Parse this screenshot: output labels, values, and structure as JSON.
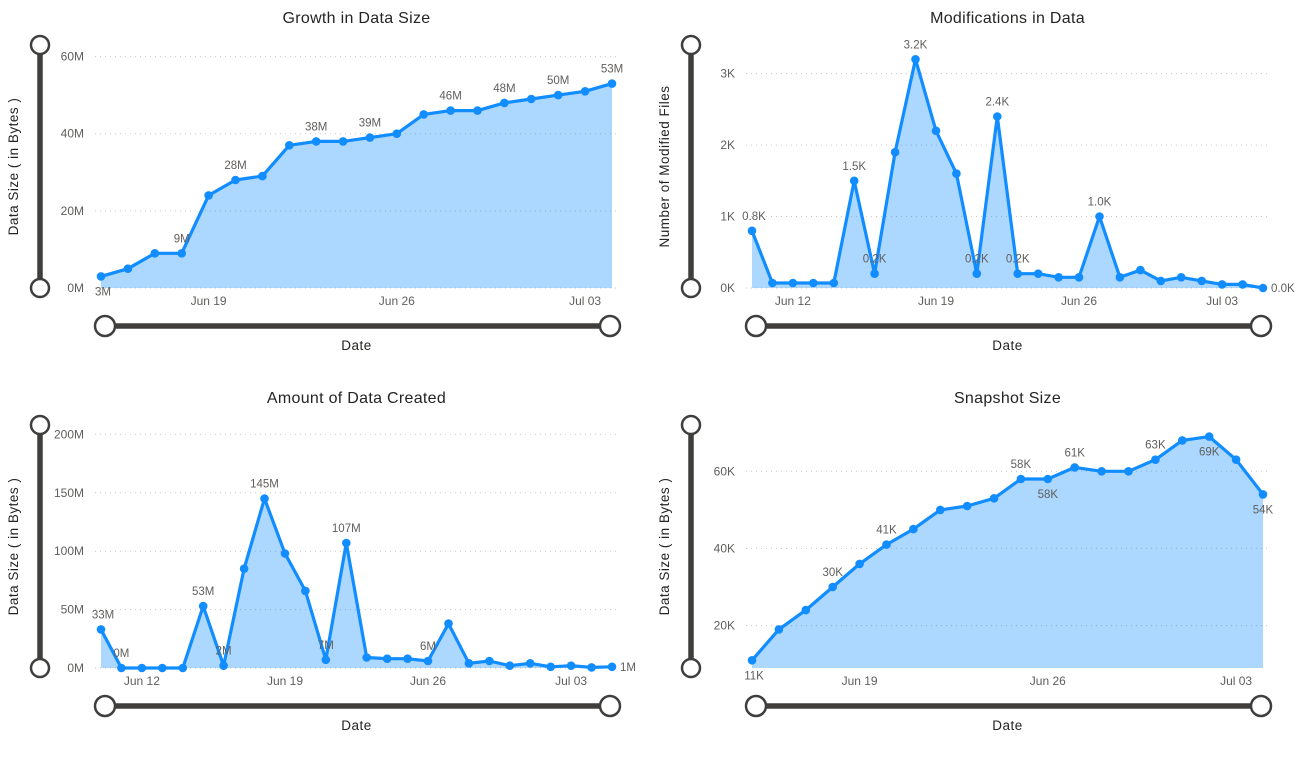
{
  "page": {
    "background": "#FFFFFF"
  },
  "theme": {
    "line_color": "#118DFF",
    "fill_color": "#118DFF",
    "fill_opacity": 0.35,
    "point_color": "#118DFF",
    "grid_color": "#C9C7C5",
    "tick_label_color": "#605E5C",
    "data_label_color": "#605E5C",
    "title_color": "#252423",
    "slider_color": "#3F3E3D"
  },
  "chart_data": [
    {
      "type": "area",
      "title": "Growth in Data Size",
      "xlabel": "Date",
      "ylabel": "Data Size ( in Bytes )",
      "ylim": [
        0,
        63
      ],
      "grid": true,
      "yticks": [
        {
          "value": 0,
          "label": "0M"
        },
        {
          "value": 20,
          "label": "20M"
        },
        {
          "value": 40,
          "label": "40M"
        },
        {
          "value": 60,
          "label": "60M"
        }
      ],
      "values": [
        3,
        5,
        9,
        9,
        24,
        28,
        29,
        37,
        38,
        38,
        39,
        40,
        45,
        46,
        46,
        48,
        49,
        50,
        51,
        53
      ],
      "xticks": [
        {
          "index": 4,
          "label": "Jun 19"
        },
        {
          "index": 11,
          "label": "Jun 26"
        },
        {
          "index": 18,
          "label": "Jul 03"
        }
      ],
      "point_labels": [
        {
          "index": 0,
          "text": "3M",
          "pos": "below"
        },
        {
          "index": 3,
          "text": "9M",
          "pos": "above"
        },
        {
          "index": 5,
          "text": "28M",
          "pos": "above"
        },
        {
          "index": 8,
          "text": "38M",
          "pos": "above"
        },
        {
          "index": 10,
          "text": "39M",
          "pos": "above"
        },
        {
          "index": 13,
          "text": "46M",
          "pos": "above"
        },
        {
          "index": 15,
          "text": "48M",
          "pos": "above"
        },
        {
          "index": 17,
          "text": "50M",
          "pos": "above"
        },
        {
          "index": 19,
          "text": "53M",
          "pos": "above"
        }
      ]
    },
    {
      "type": "area",
      "title": "Modifications in Data",
      "xlabel": "Date",
      "ylabel": "Number of Modified Files",
      "ylim": [
        0,
        3.4
      ],
      "grid": true,
      "yticks": [
        {
          "value": 0,
          "label": "0K"
        },
        {
          "value": 1,
          "label": "1K"
        },
        {
          "value": 2,
          "label": "2K"
        },
        {
          "value": 3,
          "label": "3K"
        }
      ],
      "values": [
        0.8,
        0.07,
        0.07,
        0.07,
        0.07,
        1.5,
        0.2,
        1.9,
        3.2,
        2.2,
        1.6,
        0.2,
        2.4,
        0.2,
        0.2,
        0.15,
        0.15,
        1.0,
        0.15,
        0.25,
        0.1,
        0.15,
        0.1,
        0.05,
        0.05,
        0.0
      ],
      "xticks": [
        {
          "index": 2,
          "label": "Jun 12"
        },
        {
          "index": 9,
          "label": "Jun 19"
        },
        {
          "index": 16,
          "label": "Jun 26"
        },
        {
          "index": 23,
          "label": "Jul 03"
        }
      ],
      "point_labels": [
        {
          "index": 0,
          "text": "0.8K",
          "pos": "above"
        },
        {
          "index": 5,
          "text": "1.5K",
          "pos": "above"
        },
        {
          "index": 6,
          "text": "0.2K",
          "pos": "above"
        },
        {
          "index": 8,
          "text": "3.2K",
          "pos": "above"
        },
        {
          "index": 11,
          "text": "0.2K",
          "pos": "above"
        },
        {
          "index": 12,
          "text": "2.4K",
          "pos": "above"
        },
        {
          "index": 13,
          "text": "0.2K",
          "pos": "above"
        },
        {
          "index": 17,
          "text": "1.0K",
          "pos": "above"
        },
        {
          "index": 25,
          "text": "0.0K",
          "pos": "right"
        }
      ]
    },
    {
      "type": "area",
      "title": "Amount of Data Created",
      "xlabel": "Date",
      "ylabel": "Data Size ( in Bytes )",
      "ylim": [
        0,
        208
      ],
      "grid": true,
      "yticks": [
        {
          "value": 0,
          "label": "0M"
        },
        {
          "value": 50,
          "label": "50M"
        },
        {
          "value": 100,
          "label": "100M"
        },
        {
          "value": 150,
          "label": "150M"
        },
        {
          "value": 200,
          "label": "200M"
        }
      ],
      "values": [
        33,
        0,
        0,
        0,
        0,
        53,
        2,
        85,
        145,
        98,
        66,
        7,
        107,
        9,
        8,
        8,
        6,
        38,
        4,
        6,
        2,
        4,
        1,
        2,
        0.5,
        1
      ],
      "xticks": [
        {
          "index": 2,
          "label": "Jun 12"
        },
        {
          "index": 9,
          "label": "Jun 19"
        },
        {
          "index": 16,
          "label": "Jun 26"
        },
        {
          "index": 23,
          "label": "Jul 03"
        }
      ],
      "point_labels": [
        {
          "index": 0,
          "text": "33M",
          "pos": "above"
        },
        {
          "index": 1,
          "text": "0M",
          "pos": "above"
        },
        {
          "index": 5,
          "text": "53M",
          "pos": "above"
        },
        {
          "index": 6,
          "text": "2M",
          "pos": "above"
        },
        {
          "index": 8,
          "text": "145M",
          "pos": "above"
        },
        {
          "index": 11,
          "text": "7M",
          "pos": "above"
        },
        {
          "index": 12,
          "text": "107M",
          "pos": "above"
        },
        {
          "index": 16,
          "text": "6M",
          "pos": "above"
        },
        {
          "index": 25,
          "text": "1M",
          "pos": "right"
        }
      ]
    },
    {
      "type": "area",
      "title": "Snapshot Size",
      "xlabel": "Date",
      "ylabel": "Data Size ( in Bytes )",
      "ylim": [
        9,
        72
      ],
      "grid": true,
      "yticks": [
        {
          "value": 20,
          "label": "20K"
        },
        {
          "value": 40,
          "label": "40K"
        },
        {
          "value": 60,
          "label": "60K"
        }
      ],
      "values": [
        11,
        19,
        24,
        30,
        36,
        41,
        45,
        50,
        51,
        53,
        58,
        58,
        61,
        60,
        60,
        63,
        68,
        69,
        63,
        54
      ],
      "xticks": [
        {
          "index": 4,
          "label": "Jun 19"
        },
        {
          "index": 11,
          "label": "Jun 26"
        },
        {
          "index": 18,
          "label": "Jul 03"
        }
      ],
      "point_labels": [
        {
          "index": 0,
          "text": "11K",
          "pos": "below"
        },
        {
          "index": 3,
          "text": "30K",
          "pos": "above"
        },
        {
          "index": 5,
          "text": "41K",
          "pos": "above"
        },
        {
          "index": 10,
          "text": "58K",
          "pos": "above"
        },
        {
          "index": 11,
          "text": "58K",
          "pos": "below"
        },
        {
          "index": 12,
          "text": "61K",
          "pos": "above"
        },
        {
          "index": 15,
          "text": "63K",
          "pos": "above"
        },
        {
          "index": 17,
          "text": "69K",
          "pos": "below"
        },
        {
          "index": 19,
          "text": "54K",
          "pos": "below"
        }
      ]
    }
  ]
}
